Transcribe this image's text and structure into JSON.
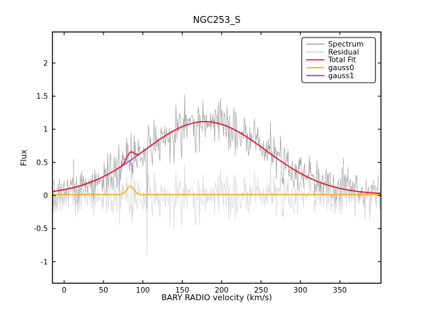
{
  "chart_data": {
    "type": "line",
    "title": "NGC253_S",
    "xlabel": "BARY RADIO velocity (km/s)",
    "ylabel": "Flux",
    "xlim": [
      -14.8,
      402.3
    ],
    "ylim": [
      -1.324,
      2.469
    ],
    "x_ticks": [
      0,
      50,
      100,
      150,
      200,
      250,
      300,
      350
    ],
    "x_tick_labels": [
      "0",
      "50",
      "100",
      "150",
      "200",
      "250",
      "300",
      "350"
    ],
    "y_ticks": [
      2,
      1.5,
      1,
      0.5,
      0,
      -0.5,
      -1
    ],
    "y_tick_labels": [
      "2",
      "1.5",
      "1",
      "0.5",
      "0",
      "-0.5",
      "-1"
    ],
    "grid": false,
    "legend": {
      "position": "upper right",
      "entries": [
        "Spectrum",
        "Residual",
        "Total Fit",
        "gauss0",
        "gauss1"
      ]
    },
    "series": [
      {
        "name": "Spectrum",
        "color": "#a2a2a2",
        "kind": "noisy_spectrum",
        "linewidth": 0.75,
        "description": "observed spectrum = total fit model + noise; ~0 at edges, peaks ~1.1+-0.45 near 180 km/s, extremes ~-0.55 to ~1.55"
      },
      {
        "name": "Residual",
        "color": "#d7d7d7",
        "kind": "noise_residual",
        "linewidth": 0.75,
        "description": "spectrum minus total fit; noise around 0, mostly within +-0.45, one spike to -0.91 near 105 km/s"
      },
      {
        "name": "Total Fit",
        "color": "#e01b2e",
        "kind": "model_total",
        "linewidth": 1.7,
        "description": "baseline + gauss0 + gauss1; peak ~1.12 at ~179 km/s with small bump ~0.63 at ~84 km/s"
      },
      {
        "name": "gauss0",
        "color": "#ffa500",
        "kind": "model_gauss0",
        "linewidth": 1.5,
        "description": "narrow component: flat ~0.015 with small peak to ~0.14 at ~84 km/s"
      },
      {
        "name": "gauss1",
        "color": "#9932cc",
        "kind": "model_gauss1",
        "linewidth": 1.5,
        "description": "broad component, hidden under Total Fit except near 75-100 km/s"
      }
    ],
    "model": {
      "baseline": 0.015,
      "gauss0": {
        "amplitude": 0.125,
        "center": 84,
        "sigma": 4.5
      },
      "gauss1": {
        "amplitude": 1.1,
        "center": 179,
        "sigma": 77
      }
    },
    "noise": {
      "seed": 1234567,
      "sigma": 0.165,
      "n_points": 560,
      "outlier": {
        "velocity": 105.5,
        "value": -0.91
      }
    }
  }
}
